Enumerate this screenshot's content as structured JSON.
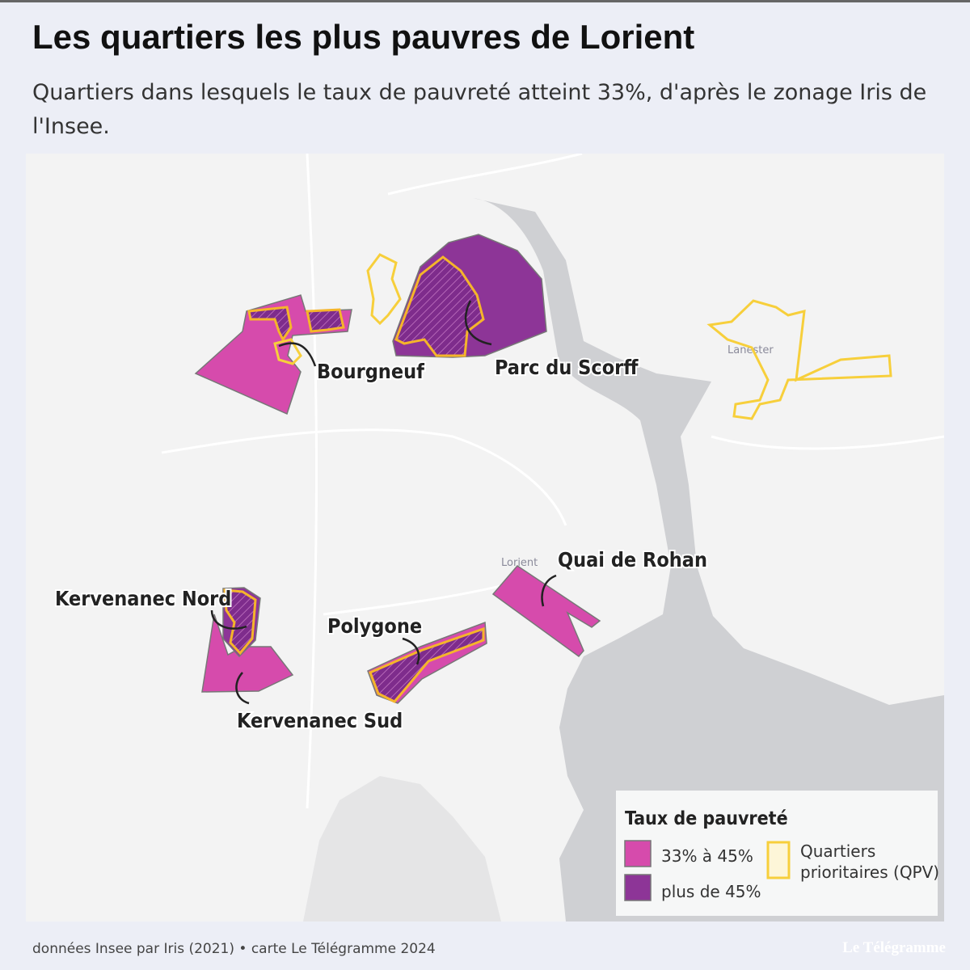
{
  "header": {
    "title": "Les quartiers les plus pauvres de Lorient",
    "subtitle": "Quartiers dans lesquels le taux de pauvreté atteint 33%, d'après le zonage Iris de l'Insee."
  },
  "map": {
    "places": [
      "Lorient",
      "Lanester"
    ],
    "labels": [
      "Bourgneuf",
      "Parc du Scorff",
      "Quai de Rohan",
      "Kervenanec Nord",
      "Polygone",
      "Kervenanec Sud"
    ]
  },
  "legend": {
    "title": "Taux de pauvreté",
    "items": [
      "33% à 45%",
      "plus de 45%",
      "Quartiers prioritaires (QPV)"
    ]
  },
  "footer": {
    "source": "données Insee par Iris (2021) • carte Le Télégramme 2024",
    "brand": "Le Télégramme"
  }
}
